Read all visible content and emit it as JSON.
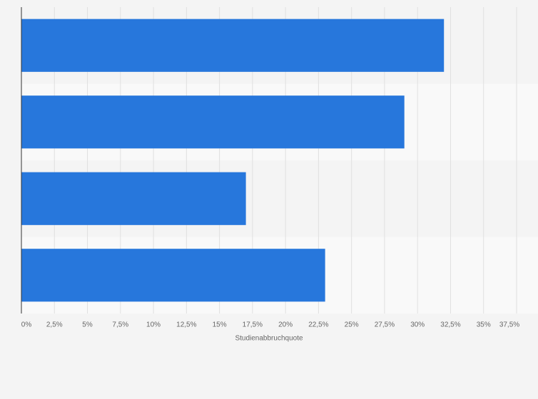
{
  "chart_data": {
    "type": "bar",
    "orientation": "horizontal",
    "categories": [
      null,
      null,
      null,
      null
    ],
    "values": [
      32,
      29,
      17,
      23
    ],
    "color": "#2777dc",
    "xlim": [
      0,
      37.5
    ],
    "xticks": [
      {
        "value": 0,
        "label": "0%"
      },
      {
        "value": 2.5,
        "label": "2,5%"
      },
      {
        "value": 5,
        "label": "5%"
      },
      {
        "value": 7.5,
        "label": "7,5%"
      },
      {
        "value": 10,
        "label": "10%"
      },
      {
        "value": 12.5,
        "label": "12,5%"
      },
      {
        "value": 15,
        "label": "15%"
      },
      {
        "value": 17.5,
        "label": "17,5%"
      },
      {
        "value": 20,
        "label": "20%"
      },
      {
        "value": 22.5,
        "label": "22,5%"
      },
      {
        "value": 25,
        "label": "25%"
      },
      {
        "value": 27.5,
        "label": "27,5%"
      },
      {
        "value": 30,
        "label": "30%"
      },
      {
        "value": 32.5,
        "label": "32,5%"
      },
      {
        "value": 35,
        "label": "35%"
      },
      {
        "value": 37.5,
        "label": "37,5%"
      }
    ],
    "x_label": "Studienabbruchquote",
    "grid": true
  }
}
